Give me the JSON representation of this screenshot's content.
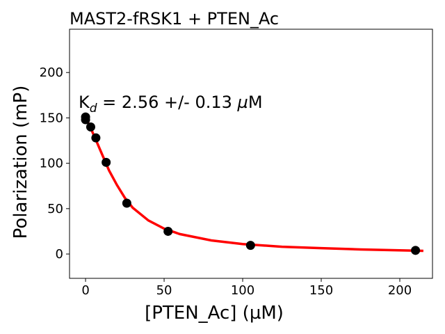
{
  "chart_data": {
    "type": "scatter",
    "title": "MAST2-fRSK1 + PTEN_Ac",
    "xlabel": "[PTEN_Ac] (µM)",
    "ylabel": "Polarization (mP)",
    "annotation": {
      "prefix": "K",
      "subscript": "d",
      "text": " = 2.56 +/- 0.13 ",
      "mu": "µ",
      "unit": "M"
    },
    "xlim": [
      -10.2,
      220.8
    ],
    "ylim": [
      -26.8,
      247.7
    ],
    "xticks": [
      0,
      50,
      100,
      150,
      200
    ],
    "yticks": [
      0,
      50,
      100,
      150,
      200
    ],
    "grid": false,
    "points": {
      "color": "#000000",
      "x": [
        0,
        0,
        3.28,
        6.56,
        13.1,
        26.25,
        52.5,
        105,
        210
      ],
      "y": [
        148,
        151,
        140,
        128,
        101,
        56,
        25,
        9.5,
        4
      ]
    },
    "fit": {
      "color": "#ff0000",
      "x": [
        0,
        2.5,
        5,
        7.5,
        10,
        15,
        20,
        25,
        30,
        40,
        50,
        60,
        80,
        100,
        125,
        150,
        175,
        200,
        215
      ],
      "y": [
        150,
        142,
        132,
        122,
        112,
        92,
        76,
        62,
        51,
        37,
        28,
        22,
        15,
        11,
        8,
        6.5,
        5,
        4,
        3.5
      ]
    }
  }
}
